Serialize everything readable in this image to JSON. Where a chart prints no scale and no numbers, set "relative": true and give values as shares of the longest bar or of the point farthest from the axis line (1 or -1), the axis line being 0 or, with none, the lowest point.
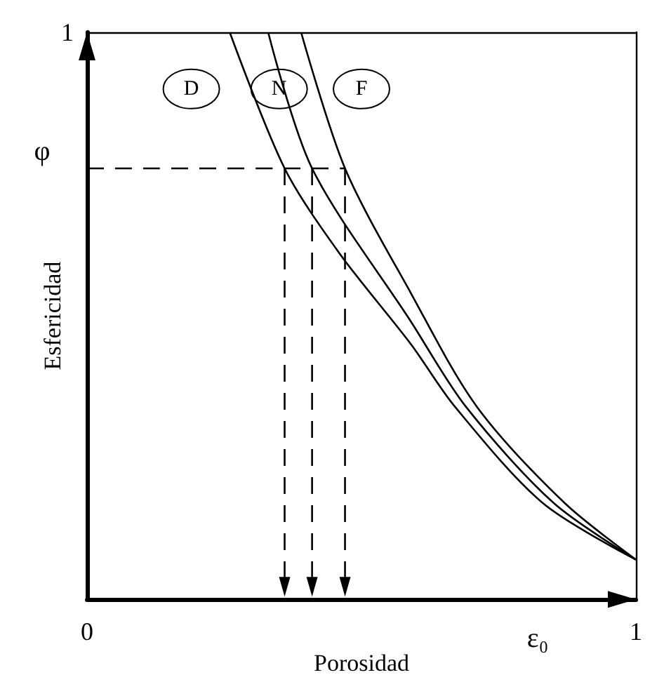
{
  "chart_data": {
    "type": "line",
    "xlabel": "Porosidad",
    "ylabel": "Esfericidad",
    "relative": true,
    "xlim": [
      0,
      1
    ],
    "xticks": [
      0,
      1
    ],
    "marker": "none",
    "line_style": "solid",
    "series": [
      {
        "color": "#000000",
        "x": [
          0.26,
          0.36,
          0.46,
          0.59,
          0.67,
          0.83,
          1
        ],
        "values": [
          1,
          0.76,
          0.61,
          0.45,
          0.34,
          0.17,
          0.07
        ]
      },
      {
        "color": "#000000",
        "x": [
          0.33,
          0.41,
          0.59,
          0.69,
          0.85,
          1
        ],
        "values": [
          1,
          0.76,
          0.49,
          0.34,
          0.17,
          0.07
        ]
      },
      {
        "color": "#000000",
        "x": [
          0.39,
          0.47,
          0.59,
          0.71,
          0.87,
          1
        ],
        "values": [
          1,
          0.76,
          0.54,
          0.34,
          0.17,
          0.07
        ]
      },
      {
        "color": "#000000",
        "line_style": "dashed",
        "x": [
          0,
          0.47
        ],
        "values": [
          0.76,
          0.76
        ]
      }
    ],
    "annotations": [
      {
        "text": "D",
        "x": 0.19,
        "y": 0.9
      },
      {
        "text": "N",
        "x": 0.35,
        "y": 0.9
      },
      {
        "text": "F",
        "x": 0.5,
        "y": 0.9
      },
      "φ",
      "ε₀",
      "1"
    ]
  }
}
